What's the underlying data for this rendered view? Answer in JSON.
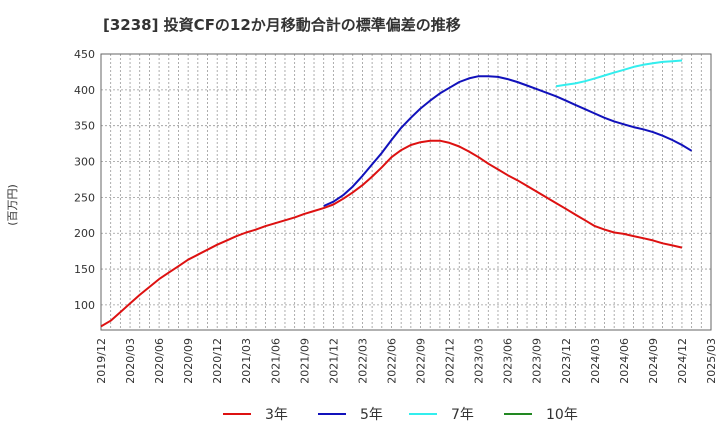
{
  "chart_data": {
    "type": "line",
    "title": "[3238]  投資CFの12か月移動合計の標準偏差の推移",
    "ylabel": "(百万円)",
    "ylim": [
      65,
      450
    ],
    "y_ticks": [
      100,
      150,
      200,
      250,
      300,
      350,
      400,
      450
    ],
    "x_ticks": [
      "2019/12",
      "2020/03",
      "2020/06",
      "2020/09",
      "2020/12",
      "2021/03",
      "2021/06",
      "2021/09",
      "2021/12",
      "2022/03",
      "2022/06",
      "2022/09",
      "2022/12",
      "2023/03",
      "2023/06",
      "2023/09",
      "2023/12",
      "2024/03",
      "2024/06",
      "2024/09",
      "2024/12",
      "2025/03"
    ],
    "grid": true,
    "legend_position": "bottom",
    "series": [
      {
        "name": "3年",
        "color": "#dd1111",
        "values": [
          [
            "2019/12",
            70
          ],
          [
            "2020/01",
            78
          ],
          [
            "2020/02",
            90
          ],
          [
            "2020/03",
            102
          ],
          [
            "2020/04",
            114
          ],
          [
            "2020/05",
            125
          ],
          [
            "2020/06",
            136
          ],
          [
            "2020/07",
            145
          ],
          [
            "2020/08",
            154
          ],
          [
            "2020/09",
            163
          ],
          [
            "2020/10",
            170
          ],
          [
            "2020/11",
            177
          ],
          [
            "2020/12",
            184
          ],
          [
            "2021/01",
            190
          ],
          [
            "2021/02",
            196
          ],
          [
            "2021/03",
            201
          ],
          [
            "2021/04",
            205
          ],
          [
            "2021/05",
            210
          ],
          [
            "2021/06",
            214
          ],
          [
            "2021/07",
            218
          ],
          [
            "2021/08",
            222
          ],
          [
            "2021/09",
            227
          ],
          [
            "2021/10",
            231
          ],
          [
            "2021/11",
            235
          ],
          [
            "2021/12",
            240
          ],
          [
            "2022/01",
            248
          ],
          [
            "2022/02",
            257
          ],
          [
            "2022/03",
            267
          ],
          [
            "2022/04",
            279
          ],
          [
            "2022/05",
            292
          ],
          [
            "2022/06",
            306
          ],
          [
            "2022/07",
            316
          ],
          [
            "2022/08",
            323
          ],
          [
            "2022/09",
            327
          ],
          [
            "2022/10",
            329
          ],
          [
            "2022/11",
            329
          ],
          [
            "2022/12",
            326
          ],
          [
            "2023/01",
            321
          ],
          [
            "2023/02",
            314
          ],
          [
            "2023/03",
            306
          ],
          [
            "2023/04",
            297
          ],
          [
            "2023/05",
            289
          ],
          [
            "2023/06",
            281
          ],
          [
            "2023/07",
            274
          ],
          [
            "2023/08",
            266
          ],
          [
            "2023/09",
            258
          ],
          [
            "2023/10",
            250
          ],
          [
            "2023/11",
            242
          ],
          [
            "2023/12",
            234
          ],
          [
            "2024/01",
            226
          ],
          [
            "2024/02",
            218
          ],
          [
            "2024/03",
            210
          ],
          [
            "2024/04",
            205
          ],
          [
            "2024/05",
            201
          ],
          [
            "2024/06",
            199
          ],
          [
            "2024/07",
            196
          ],
          [
            "2024/08",
            193
          ],
          [
            "2024/09",
            190
          ],
          [
            "2024/10",
            186
          ],
          [
            "2024/11",
            183
          ],
          [
            "2024/12",
            180
          ]
        ]
      },
      {
        "name": "5年",
        "color": "#1111bb",
        "values": [
          [
            "2021/11",
            238
          ],
          [
            "2021/12",
            244
          ],
          [
            "2022/01",
            253
          ],
          [
            "2022/02",
            265
          ],
          [
            "2022/03",
            280
          ],
          [
            "2022/04",
            296
          ],
          [
            "2022/05",
            312
          ],
          [
            "2022/06",
            330
          ],
          [
            "2022/07",
            347
          ],
          [
            "2022/08",
            361
          ],
          [
            "2022/09",
            374
          ],
          [
            "2022/10",
            385
          ],
          [
            "2022/11",
            395
          ],
          [
            "2022/12",
            403
          ],
          [
            "2023/01",
            411
          ],
          [
            "2023/02",
            416
          ],
          [
            "2023/03",
            419
          ],
          [
            "2023/04",
            419
          ],
          [
            "2023/05",
            418
          ],
          [
            "2023/06",
            415
          ],
          [
            "2023/07",
            411
          ],
          [
            "2023/08",
            406
          ],
          [
            "2023/09",
            401
          ],
          [
            "2023/10",
            396
          ],
          [
            "2023/11",
            391
          ],
          [
            "2023/12",
            385
          ],
          [
            "2024/01",
            379
          ],
          [
            "2024/02",
            373
          ],
          [
            "2024/03",
            367
          ],
          [
            "2024/04",
            361
          ],
          [
            "2024/05",
            356
          ],
          [
            "2024/06",
            352
          ],
          [
            "2024/07",
            348
          ],
          [
            "2024/08",
            345
          ],
          [
            "2024/09",
            341
          ],
          [
            "2024/10",
            336
          ],
          [
            "2024/11",
            330
          ],
          [
            "2024/12",
            323
          ],
          [
            "2025/01",
            315
          ]
        ]
      },
      {
        "name": "7年",
        "color": "#33eeee",
        "values": [
          [
            "2023/11",
            405
          ],
          [
            "2023/12",
            407
          ],
          [
            "2024/01",
            409
          ],
          [
            "2024/02",
            412
          ],
          [
            "2024/03",
            416
          ],
          [
            "2024/04",
            420
          ],
          [
            "2024/05",
            424
          ],
          [
            "2024/06",
            428
          ],
          [
            "2024/07",
            432
          ],
          [
            "2024/08",
            435
          ],
          [
            "2024/09",
            437
          ],
          [
            "2024/10",
            439
          ],
          [
            "2024/11",
            440
          ],
          [
            "2024/12",
            441
          ]
        ]
      },
      {
        "name": "10年",
        "color": "#228822",
        "values": []
      }
    ]
  }
}
